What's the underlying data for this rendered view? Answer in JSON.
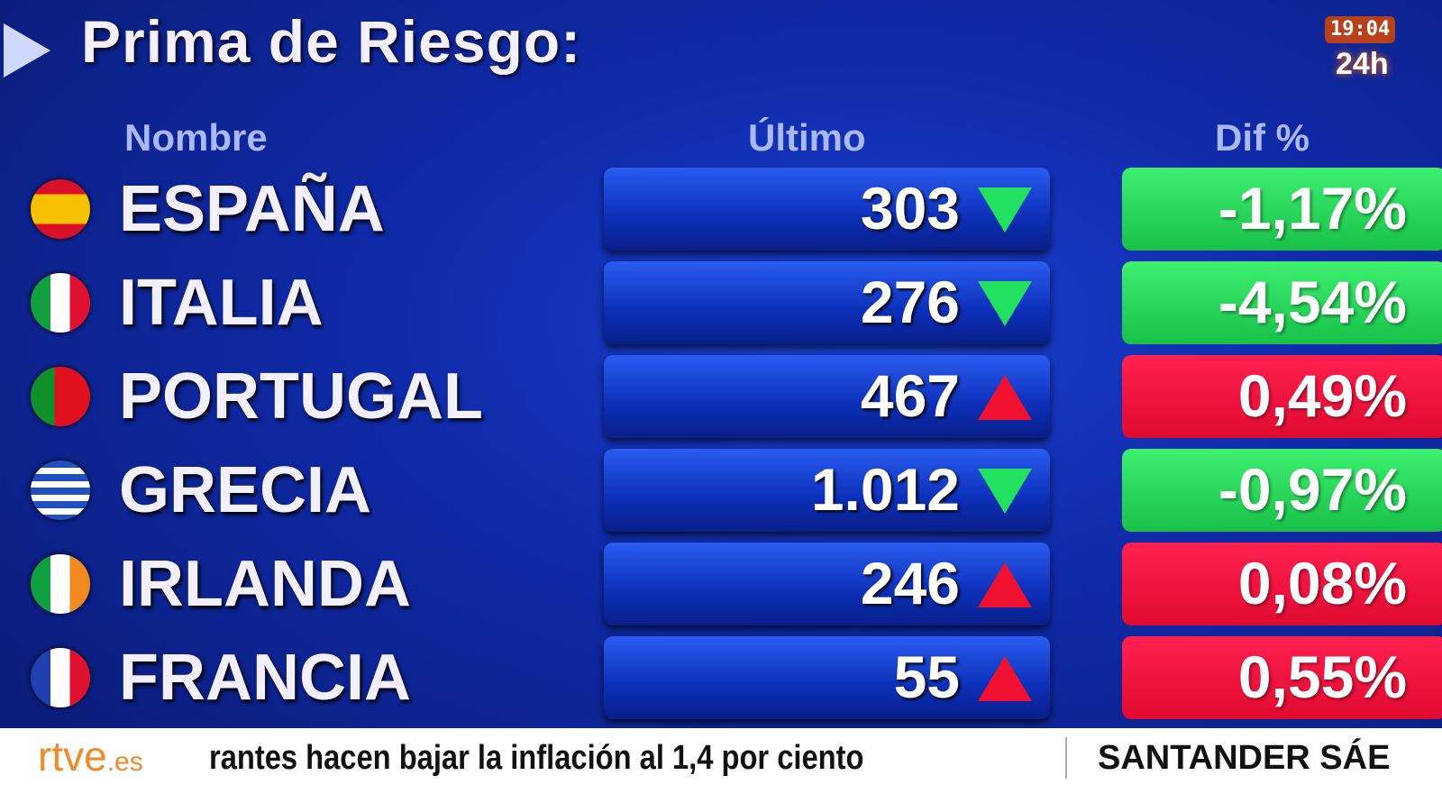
{
  "title": "Prima de Riesgo:",
  "headers": {
    "name": "Nombre",
    "last": "Último",
    "diff": "Dif %"
  },
  "colors": {
    "up": "#f01030",
    "down": "#22e060",
    "background": "#0f2aa8",
    "logo": "#f08a2a"
  },
  "rows": [
    {
      "name": "ESPAÑA",
      "last": "303",
      "direction": "down",
      "diff": "-1,17%",
      "flag": "spain-flag-icon"
    },
    {
      "name": "ITALIA",
      "last": "276",
      "direction": "down",
      "diff": "-4,54%",
      "flag": "italy-flag-icon"
    },
    {
      "name": "PORTUGAL",
      "last": "467",
      "direction": "up",
      "diff": "0,49%",
      "flag": "portugal-flag-icon"
    },
    {
      "name": "GRECIA",
      "last": "1.012",
      "direction": "down",
      "diff": "-0,97%",
      "flag": "greece-flag-icon"
    },
    {
      "name": "IRLANDA",
      "last": "246",
      "direction": "up",
      "diff": "0,08%",
      "flag": "ireland-flag-icon"
    },
    {
      "name": "FRANCIA",
      "last": "55",
      "direction": "up",
      "diff": "0,55%",
      "flag": "france-flag-icon"
    }
  ],
  "channel": {
    "time": "19:04",
    "name": "24h"
  },
  "ticker": {
    "logo": "rtve",
    "logo_suffix": ".es",
    "headline": "rantes hacen bajar la inflación al 1,4 por ciento",
    "next": "SANTANDER SÁE"
  }
}
